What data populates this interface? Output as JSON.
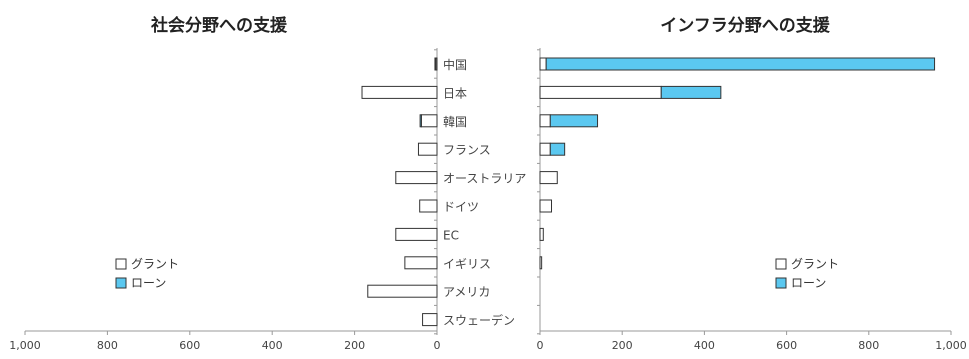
{
  "chart_data": [
    {
      "type": "bar",
      "orientation": "horizontal",
      "stacked": true,
      "direction": "reversed",
      "title": "社会分野への支援",
      "categories": [
        "中国",
        "日本",
        "韓国",
        "フランス",
        "オーストラリア",
        "ドイツ",
        "EC",
        "イギリス",
        "アメリカ",
        "スウェーデン"
      ],
      "series": [
        {
          "name": "グラント",
          "values": [
            3,
            182,
            38,
            45,
            100,
            42,
            100,
            78,
            168,
            35
          ]
        },
        {
          "name": "ローン",
          "values": [
            2,
            0,
            3,
            0,
            0,
            0,
            0,
            0,
            0,
            0
          ]
        }
      ],
      "xlim": [
        0,
        1000
      ],
      "x_ticks": [
        "0",
        "200",
        "400",
        "600",
        "800",
        "1,000"
      ],
      "grid": false,
      "legend": "bottom-left"
    },
    {
      "type": "bar",
      "orientation": "horizontal",
      "stacked": true,
      "title": "インフラ分野への支援",
      "categories": [
        "中国",
        "日本",
        "韓国",
        "フランス",
        "オーストラリア",
        "ドイツ",
        "EC",
        "イギリス",
        "アメリカ",
        "スウェーデン"
      ],
      "series": [
        {
          "name": "グラント",
          "values": [
            15,
            295,
            25,
            25,
            42,
            28,
            8,
            4,
            0,
            0
          ]
        },
        {
          "name": "ローン",
          "values": [
            945,
            145,
            115,
            35,
            0,
            0,
            0,
            0,
            0,
            0
          ]
        }
      ],
      "xlim": [
        0,
        1000
      ],
      "x_ticks": [
        "0",
        "200",
        "400",
        "600",
        "800",
        "1,000"
      ],
      "grid": false,
      "legend": "bottom-right"
    }
  ],
  "legend": {
    "items": [
      "グラント",
      "ローン"
    ]
  },
  "colors": {
    "grant": "#ffffff",
    "loan": "#5bc8f0",
    "outline": "#333333",
    "axis": "#999999"
  }
}
